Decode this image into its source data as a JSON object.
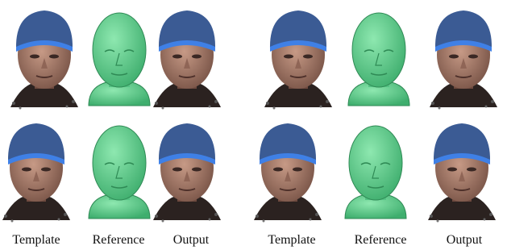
{
  "figure": {
    "groups": [
      {
        "labels": [
          "Template",
          "Reference",
          "Output"
        ]
      },
      {
        "labels": [
          "Template",
          "Reference",
          "Output"
        ]
      }
    ]
  }
}
